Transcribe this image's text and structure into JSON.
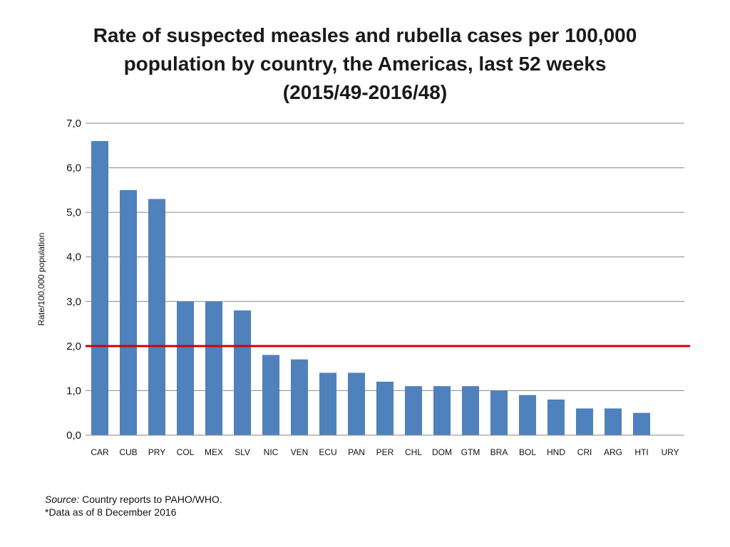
{
  "title_lines": [
    "Rate of suspected measles and rubella cases per 100,000",
    "population by country, the Americas, last 52 weeks",
    "(2015/49-2016/48)"
  ],
  "source": {
    "label": "Source:",
    "text": " Country reports to PAHO/WHO.",
    "note": "*Data as of 8 December 2016"
  },
  "colors": {
    "bar": "#4F81BD",
    "threshold": "#D60000",
    "grid": "#868686"
  },
  "chart_data": {
    "type": "bar",
    "categories": [
      "CAR",
      "CUB",
      "PRY",
      "COL",
      "MEX",
      "SLV",
      "NIC",
      "VEN",
      "ECU",
      "PAN",
      "PER",
      "CHL",
      "DOM",
      "GTM",
      "BRA",
      "BOL",
      "HND",
      "CRI",
      "ARG",
      "HTI",
      "URY"
    ],
    "values": [
      6.6,
      5.5,
      5.3,
      3.0,
      3.0,
      2.8,
      1.8,
      1.7,
      1.4,
      1.4,
      1.2,
      1.1,
      1.1,
      1.1,
      1.0,
      0.9,
      0.8,
      0.6,
      0.6,
      0.5,
      0.0
    ],
    "ylabel": "Rate/100,000 population",
    "ylim": [
      0,
      7
    ],
    "yticks": [
      0,
      1,
      2,
      3,
      4,
      5,
      6,
      7
    ],
    "ytick_labels": [
      "0,0",
      "1,0",
      "2,0",
      "3,0",
      "4,0",
      "5,0",
      "6,0",
      "7,0"
    ],
    "threshold": 2.0,
    "grid": true,
    "legend": false
  }
}
